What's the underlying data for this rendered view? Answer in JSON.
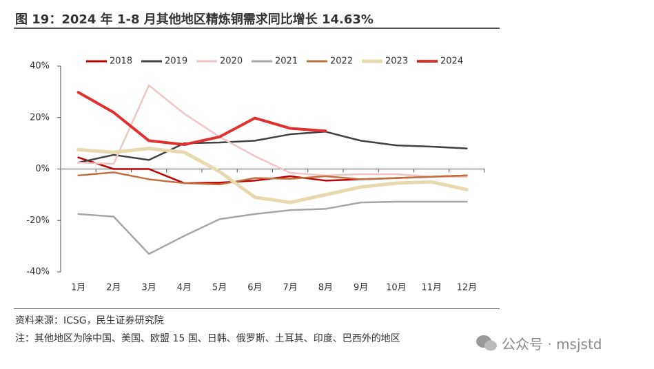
{
  "header": {
    "title": "图 19：2024 年 1-8 月其他地区精炼铜需求同比增长 14.63%"
  },
  "chart_data": {
    "type": "line",
    "categories": [
      "1月",
      "2月",
      "3月",
      "4月",
      "5月",
      "6月",
      "7月",
      "8月",
      "9月",
      "10月",
      "11月",
      "12月"
    ],
    "ylim": [
      -40,
      40
    ],
    "yticks": [
      {
        "value": -40,
        "label": "-40%"
      },
      {
        "value": -20,
        "label": "-20%"
      },
      {
        "value": 0,
        "label": "0%"
      },
      {
        "value": 20,
        "label": "20%"
      },
      {
        "value": 40,
        "label": "40%"
      }
    ],
    "grid": false,
    "legend": "top",
    "series": [
      {
        "name": "2018",
        "color": "#c00000",
        "width": 2.5,
        "values": [
          4.5,
          0,
          0,
          -5.5,
          -5.3,
          -4.5,
          -2.8,
          -4.5,
          -4,
          -3.5,
          -3,
          -2.5
        ]
      },
      {
        "name": "2019",
        "color": "#404040",
        "width": 2.5,
        "values": [
          2.5,
          5.5,
          3.5,
          10,
          10.3,
          11,
          13.5,
          14.5,
          11,
          9.2,
          8.7,
          8
        ]
      },
      {
        "name": "2020",
        "color": "#f2c4c4",
        "width": 2.5,
        "values": [
          2.5,
          2,
          32.5,
          21.5,
          12.5,
          5,
          -1.5,
          -2.5,
          -2,
          -2,
          -3,
          -3
        ]
      },
      {
        "name": "2021",
        "color": "#a6a6a6",
        "width": 2.5,
        "values": [
          -17.5,
          -18.5,
          -33,
          -26,
          -19.5,
          -17.5,
          -16,
          -15.5,
          -13,
          -12.7,
          -12.7,
          -12.7
        ]
      },
      {
        "name": "2022",
        "color": "#c0703f",
        "width": 2.5,
        "values": [
          -2.5,
          -1.3,
          -4,
          -5.5,
          -6,
          -3.5,
          -3.8,
          -2.8,
          -4,
          -3.5,
          -3,
          -2.5
        ]
      },
      {
        "name": "2023",
        "color": "#e8d8b0",
        "width": 5,
        "values": [
          7.5,
          6.5,
          8,
          6.5,
          -1,
          -11,
          -13,
          -10,
          -7,
          -5.5,
          -5,
          -8
        ]
      },
      {
        "name": "2024",
        "color": "#e03030",
        "width": 4,
        "values": [
          29.8,
          22,
          11,
          9.5,
          12.5,
          19.8,
          15.8,
          14.8,
          null,
          null,
          null,
          null
        ]
      }
    ]
  },
  "footer": {
    "source": "资料来源：ICSG，民生证券研究院",
    "note": "注：其他地区为除中国、美国、欧盟 15 国、日韩、俄罗斯、土耳其、印度、巴西外的地区",
    "watermark": "公众号 · msjstd"
  }
}
